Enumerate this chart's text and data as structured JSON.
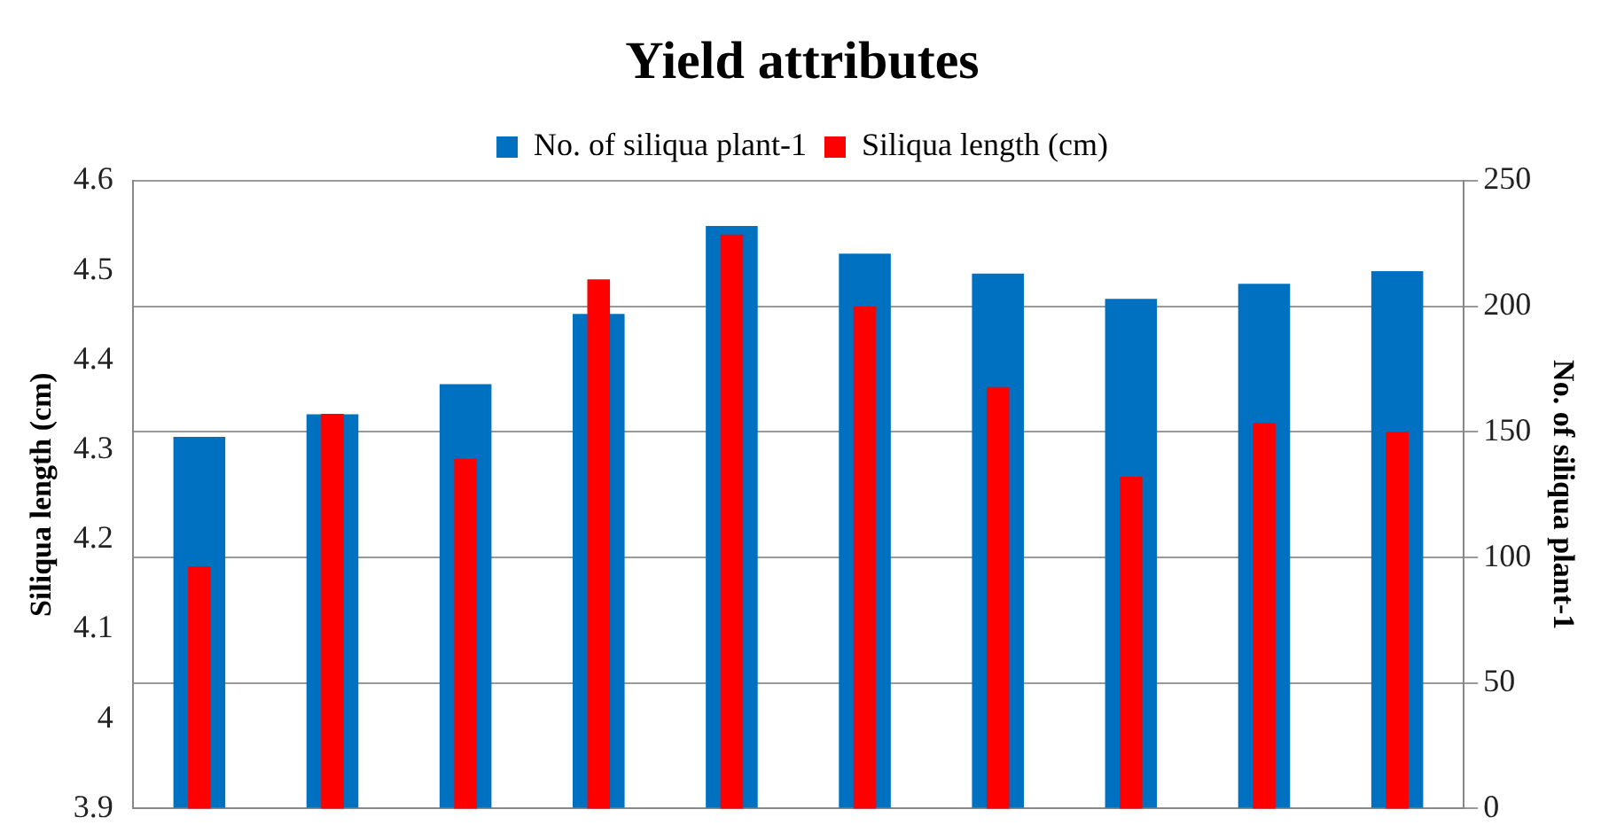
{
  "chart_data": {
    "type": "bar",
    "title": "Yield attributes",
    "ylabel": "Siliqua length (cm)",
    "y2label": "No. of siliqua plant-1",
    "categories": [
      null,
      null,
      null,
      null,
      null,
      null,
      null,
      null,
      null,
      null
    ],
    "series": [
      {
        "name": "No. of siliqua plant-1",
        "color": "#0070c0",
        "axis": "y2",
        "values": [
          148,
          157,
          169,
          197,
          232,
          221,
          213,
          203,
          209,
          214
        ]
      },
      {
        "name": "Siliqua length (cm)",
        "color": "#ff0000",
        "axis": "y",
        "values": [
          4.17,
          4.34,
          4.29,
          4.49,
          4.54,
          4.46,
          4.37,
          4.27,
          4.33,
          4.32
        ]
      }
    ],
    "ylim": [
      3.9,
      4.6
    ],
    "yticks": [
      3.9,
      4,
      4.1,
      4.2,
      4.3,
      4.4,
      4.5,
      4.6
    ],
    "y2lim": [
      0,
      250
    ],
    "y2ticks": [
      0,
      50,
      100,
      150,
      200,
      250
    ],
    "grid": true,
    "legend": "top"
  }
}
